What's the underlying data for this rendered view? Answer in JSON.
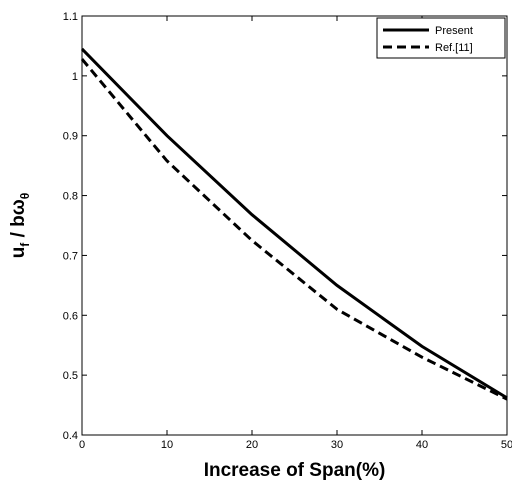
{
  "chart_data": {
    "type": "line",
    "xlabel": "Increase of Span(%)",
    "ylabel": {
      "main": "u",
      "sub1": "f",
      "mid": " / bω",
      "sub2": "θ"
    },
    "xlim": [
      0,
      50
    ],
    "ylim": [
      0.4,
      1.1
    ],
    "xticks": [
      0,
      10,
      20,
      30,
      40,
      50
    ],
    "yticks": [
      0.4,
      0.5,
      0.6,
      0.7,
      0.8,
      0.9,
      1,
      1.1
    ],
    "grid": false,
    "legend_position": "top-right",
    "x": [
      0,
      10,
      20,
      30,
      40,
      50
    ],
    "series": [
      {
        "name": "Present",
        "style": "solid",
        "color": "#000000",
        "values": [
          1.045,
          0.9,
          0.768,
          0.65,
          0.548,
          0.462
        ]
      },
      {
        "name": "Ref.[11]",
        "style": "dashed",
        "color": "#000000",
        "values": [
          1.028,
          0.858,
          0.725,
          0.61,
          0.53,
          0.46
        ]
      }
    ]
  }
}
